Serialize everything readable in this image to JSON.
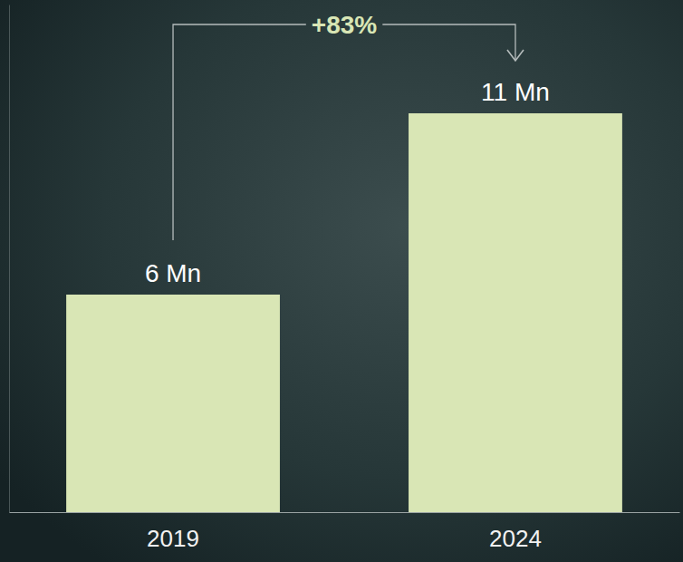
{
  "chart_data": {
    "type": "bar",
    "categories": [
      "2019",
      "2024"
    ],
    "values": [
      6,
      11
    ],
    "value_labels": [
      "6 Mn",
      "11 Mn"
    ],
    "data_labels": true,
    "color": "#d9e6b5",
    "ylim": [
      0,
      14
    ],
    "yticks": [],
    "tick_labels": "x",
    "annotation": "+83%"
  }
}
